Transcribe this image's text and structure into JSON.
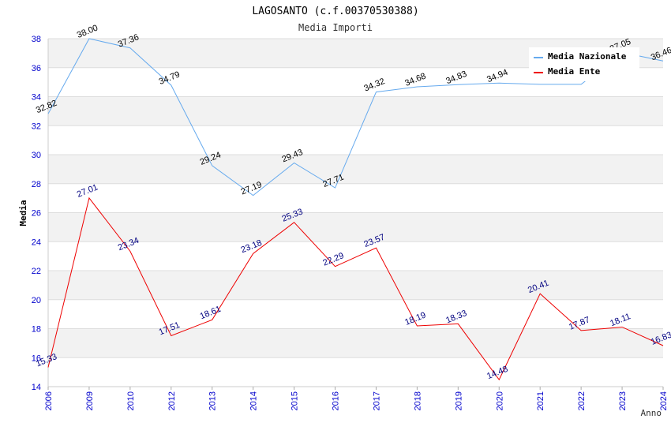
{
  "chart_data": {
    "type": "line",
    "title": "LAGOSANTO (c.f.00370530388)",
    "subtitle": "Media Importi",
    "xlabel": "Anno",
    "ylabel": "Media",
    "ylim": [
      14,
      38
    ],
    "yticks": [
      "14",
      "16",
      "18",
      "20",
      "22",
      "24",
      "26",
      "28",
      "30",
      "32",
      "34",
      "36",
      "38"
    ],
    "categories": [
      "2006",
      "2009",
      "2010",
      "2012",
      "2013",
      "2014",
      "2015",
      "2016",
      "2017",
      "2018",
      "2019",
      "2020",
      "2021",
      "2022",
      "2023",
      "2024"
    ],
    "series": [
      {
        "name": "Media Nazionale",
        "color": "#66aaee",
        "values": [
          32.82,
          38.0,
          37.36,
          34.79,
          29.24,
          27.19,
          29.43,
          27.71,
          34.32,
          34.68,
          34.83,
          34.94,
          34.85,
          34.85,
          37.05,
          36.46
        ],
        "labels": [
          "32.82",
          "38.00",
          "37.36",
          "34.79",
          "29.24",
          "27.19",
          "29.43",
          "27.71",
          "34.32",
          "34.68",
          "34.83",
          "34.94",
          "",
          "",
          "37.05",
          "36.46"
        ]
      },
      {
        "name": "Media Ente",
        "color": "#ee0000",
        "values": [
          15.33,
          27.01,
          23.34,
          17.51,
          18.61,
          23.18,
          25.33,
          22.29,
          23.57,
          18.19,
          18.33,
          14.48,
          20.41,
          17.87,
          18.11,
          16.83
        ],
        "labels": [
          "15.33",
          "27.01",
          "23.34",
          "17.51",
          "18.61",
          "23.18",
          "25.33",
          "22.29",
          "23.57",
          "18.19",
          "18.33",
          "14.48",
          "20.41",
          "17.87",
          "18.11",
          "16.83"
        ]
      }
    ],
    "legend": "top-right",
    "grid": true
  }
}
